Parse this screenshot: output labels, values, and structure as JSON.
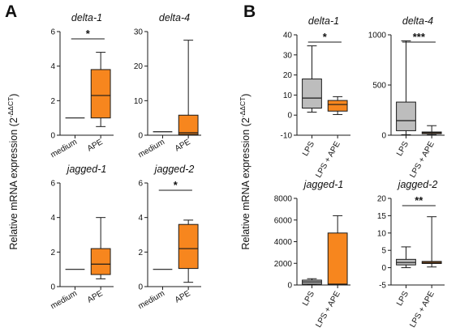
{
  "figure": {
    "panel_letters": [
      "A",
      "B"
    ],
    "ylabel_main": "Relative mRNA expression (2",
    "ylabel_sup": "-ΔΔCT",
    "ylabel_close": ")"
  },
  "colors": {
    "box_orange": "#f7861e",
    "box_gray": "#bdbdbd",
    "stroke": "#1a1a1a"
  },
  "chart_data": [
    {
      "type": "box",
      "panel": "A",
      "title": "delta-1",
      "categories": [
        "medium",
        "APE"
      ],
      "ylim": [
        0,
        6
      ],
      "yticks": [
        0,
        2,
        4,
        6
      ],
      "boxes": [
        {
          "category": "medium",
          "min": 1,
          "q1": 1,
          "median": 1,
          "q3": 1,
          "max": 1,
          "color": "none"
        },
        {
          "category": "APE",
          "min": 0.5,
          "q1": 1.0,
          "median": 2.3,
          "q3": 3.8,
          "max": 4.8,
          "color": "#f7861e"
        }
      ],
      "significance": "*"
    },
    {
      "type": "box",
      "panel": "A",
      "title": "delta-4",
      "categories": [
        "medium",
        "APE"
      ],
      "ylim": [
        0,
        30
      ],
      "yticks": [
        0,
        10,
        20,
        30
      ],
      "boxes": [
        {
          "category": "medium",
          "min": 1,
          "q1": 1,
          "median": 1,
          "q3": 1,
          "max": 1,
          "color": "none"
        },
        {
          "category": "APE",
          "min": 0,
          "q1": 0.2,
          "median": 0.7,
          "q3": 5.8,
          "max": 27.5,
          "color": "#f7861e"
        }
      ],
      "significance": ""
    },
    {
      "type": "box",
      "panel": "A",
      "title": "jagged-1",
      "categories": [
        "medium",
        "APE"
      ],
      "ylim": [
        0,
        6
      ],
      "yticks": [
        0,
        2,
        4,
        6
      ],
      "boxes": [
        {
          "category": "medium",
          "min": 1,
          "q1": 1,
          "median": 1,
          "q3": 1,
          "max": 1,
          "color": "none"
        },
        {
          "category": "APE",
          "min": 0.45,
          "q1": 0.7,
          "median": 1.3,
          "q3": 2.2,
          "max": 4.0,
          "color": "#f7861e"
        }
      ],
      "significance": ""
    },
    {
      "type": "box",
      "panel": "A",
      "title": "jagged-2",
      "categories": [
        "medium",
        "APE"
      ],
      "ylim": [
        0,
        6
      ],
      "yticks": [
        0,
        2,
        4,
        6
      ],
      "boxes": [
        {
          "category": "medium",
          "min": 1,
          "q1": 1,
          "median": 1,
          "q3": 1,
          "max": 1,
          "color": "none"
        },
        {
          "category": "APE",
          "min": 0.25,
          "q1": 1.05,
          "median": 2.2,
          "q3": 3.6,
          "max": 3.85,
          "color": "#f7861e"
        }
      ],
      "significance": "*"
    },
    {
      "type": "box",
      "panel": "B",
      "title": "delta-1",
      "categories": [
        "LPS",
        "LPS + APE"
      ],
      "ylim": [
        -10,
        40
      ],
      "yticks": [
        -10,
        0,
        10,
        20,
        30,
        40
      ],
      "boxes": [
        {
          "category": "LPS",
          "min": 1.5,
          "q1": 3.5,
          "median": 8.5,
          "q3": 18,
          "max": 34.5,
          "color": "#bdbdbd"
        },
        {
          "category": "LPS + APE",
          "min": 0.3,
          "q1": 2,
          "median": 5.3,
          "q3": 7.3,
          "max": 9.2,
          "color": "#f7861e"
        }
      ],
      "significance": "*"
    },
    {
      "type": "box",
      "panel": "B",
      "title": "delta-4",
      "categories": [
        "LPS",
        "LPS + APE"
      ],
      "ylim": [
        0,
        1000
      ],
      "yticks": [
        0,
        500,
        1000
      ],
      "boxes": [
        {
          "category": "LPS",
          "min": 5,
          "q1": 45,
          "median": 145,
          "q3": 330,
          "max": 940,
          "color": "#bdbdbd"
        },
        {
          "category": "LPS + APE",
          "min": 5,
          "q1": 15,
          "median": 25,
          "q3": 32,
          "max": 95,
          "color": "#f7861e"
        }
      ],
      "significance": "***"
    },
    {
      "type": "box",
      "panel": "B",
      "title": "jagged-1",
      "categories": [
        "LPS",
        "LPS + APE"
      ],
      "ylim": [
        0,
        8000
      ],
      "yticks": [
        0,
        2000,
        4000,
        6000,
        8000
      ],
      "boxes": [
        {
          "category": "LPS",
          "min": 30,
          "q1": 80,
          "median": 280,
          "q3": 450,
          "max": 580,
          "color": "#bdbdbd"
        },
        {
          "category": "LPS + APE",
          "min": 10,
          "q1": 60,
          "median": 80,
          "q3": 4800,
          "max": 6400,
          "color": "#f7861e"
        }
      ],
      "significance": ""
    },
    {
      "type": "box",
      "panel": "B",
      "title": "jagged-2",
      "categories": [
        "LPS",
        "LPS + APE"
      ],
      "ylim": [
        -5,
        20
      ],
      "yticks": [
        -5,
        0,
        5,
        10,
        15,
        20
      ],
      "boxes": [
        {
          "category": "LPS",
          "min": 0,
          "q1": 0.8,
          "median": 1.5,
          "q3": 2.4,
          "max": 6.0,
          "color": "#bdbdbd"
        },
        {
          "category": "LPS + APE",
          "min": 0.2,
          "q1": 1.2,
          "median": 1.5,
          "q3": 1.8,
          "max": 14.7,
          "color": "#f7861e"
        }
      ],
      "significance": "**"
    }
  ]
}
